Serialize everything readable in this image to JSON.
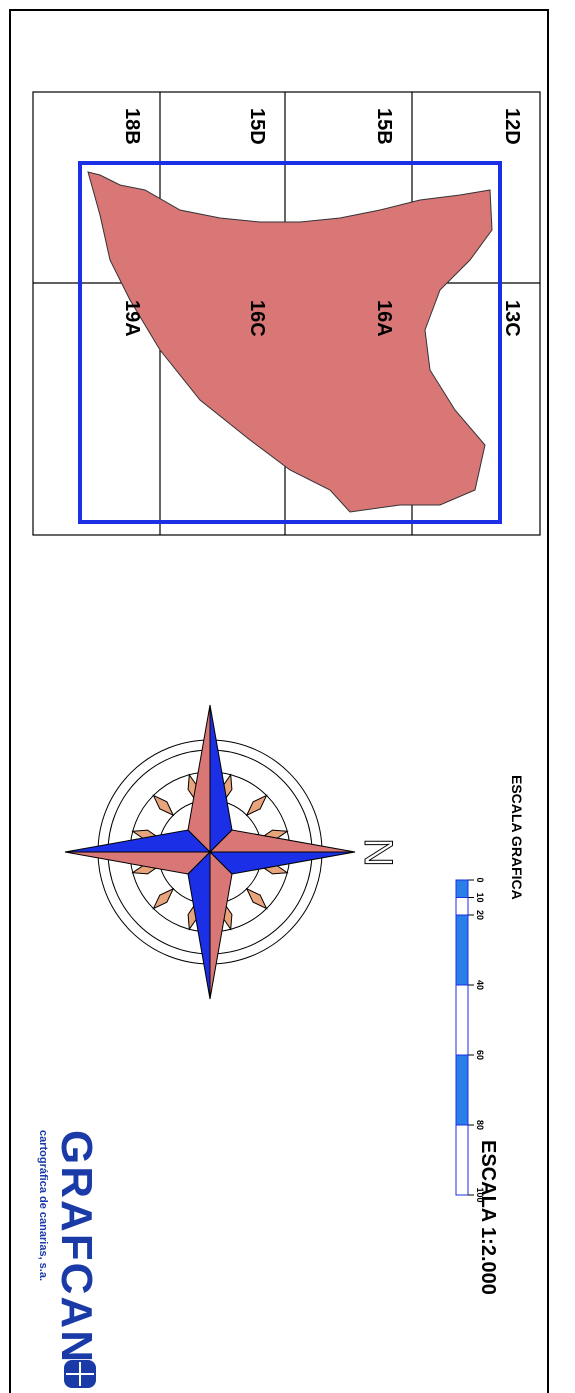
{
  "grid_labels": [
    "12D",
    "13C",
    "15B",
    "16A",
    "15D",
    "16C",
    "18B",
    "19A"
  ],
  "north": "N",
  "scale_title": "ESCALA GRAFICA",
  "scale_ticks": [
    0,
    10,
    20,
    40,
    60,
    80,
    100
  ],
  "scale_text": "ESCALA 1:2.000",
  "logo": {
    "name": "GRAFCAN",
    "subtitle": "cartográfica de canarias, s.a."
  }
}
